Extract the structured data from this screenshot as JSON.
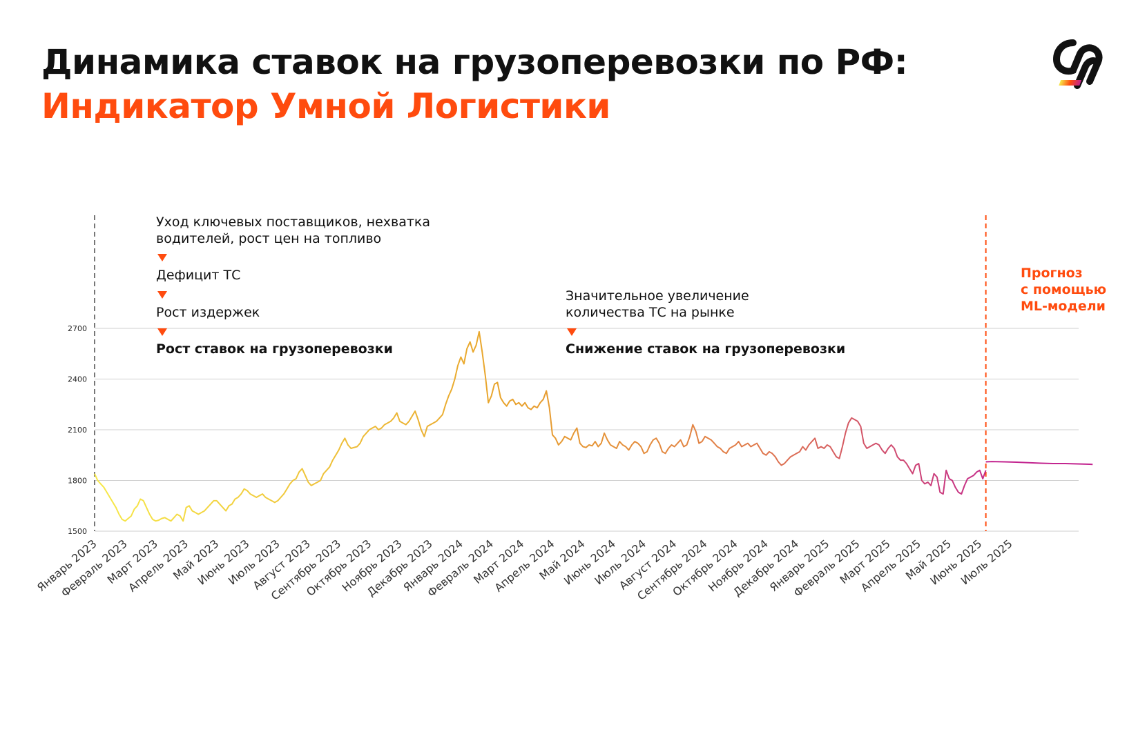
{
  "header": {
    "title_line1": "Динамика ставок на грузоперевозки по РФ:",
    "title_line2": "Индикатор Умной Логистики"
  },
  "annotations": {
    "left": {
      "line1": "Уход ключевых поставщиков, нехватка",
      "line2": "водителей, рост цен на топливо",
      "step2": "Дефицит ТС",
      "step3": "Рост издержек",
      "result": "Рост ставок на грузоперевозки"
    },
    "right": {
      "line1": "Значительное увеличение",
      "line2": "количества ТС на рынке",
      "result": "Снижение ставок на грузоперевозки"
    },
    "forecast": {
      "line1": "Прогноз",
      "line2": "с помощью",
      "line3": "ML-модели"
    }
  },
  "colors": {
    "accent": "#ff4b0e",
    "grid": "#cfcfcf",
    "line_start": "#f7e94a",
    "line_mid": "#e8a32c",
    "line_late": "#e07a4a",
    "line_end": "#c2248f"
  },
  "chart_data": {
    "type": "line",
    "title": "Динамика ставок на грузоперевозки по РФ: Индикатор Умной Логистики",
    "xlabel": "",
    "ylabel": "",
    "ylim": [
      1500,
      2700
    ],
    "yticks": [
      1500,
      1800,
      2100,
      2400,
      2700
    ],
    "grid": true,
    "x_tick_labels": [
      "Январь 2023",
      "Февраль 2023",
      "Март 2023",
      "Апрель 2023",
      "Май 2023",
      "Июнь 2023",
      "Июль 2023",
      "Август 2023",
      "Сентябрь 2023",
      "Октябрь 2023",
      "Ноябрь 2023",
      "Декабрь 2023",
      "Январь 2024",
      "Февраль 2024",
      "Март 2024",
      "Апрель 2024",
      "Май 2024",
      "Июнь 2024",
      "Июль 2024",
      "Август 2024",
      "Сентябрь 2024",
      "Октябрь 2024",
      "Ноябрь 2024",
      "Декабрь 2024",
      "Январь 2025",
      "Февраль 2025",
      "Март 2025",
      "Апрель 2025",
      "Май 2025",
      "Июнь 2025",
      "Июль 2025"
    ],
    "series": [
      {
        "kind": "actual",
        "x": [
          0,
          0.1,
          0.2,
          0.3,
          0.4,
          0.5,
          0.6,
          0.7,
          0.8,
          0.9,
          1.0,
          1.1,
          1.2,
          1.3,
          1.4,
          1.5,
          1.6,
          1.7,
          1.8,
          1.9,
          2.0,
          2.1,
          2.2,
          2.3,
          2.4,
          2.5,
          2.6,
          2.7,
          2.8,
          2.9,
          3.0,
          3.1,
          3.2,
          3.3,
          3.4,
          3.5,
          3.6,
          3.7,
          3.8,
          3.9,
          4.0,
          4.1,
          4.2,
          4.3,
          4.4,
          4.5,
          4.6,
          4.7,
          4.8,
          4.9,
          5.0,
          5.1,
          5.2,
          5.3,
          5.4,
          5.5,
          5.6,
          5.7,
          5.8,
          5.9,
          6.0,
          6.1,
          6.2,
          6.3,
          6.4,
          6.5,
          6.6,
          6.7,
          6.8,
          6.9,
          7.0,
          7.1,
          7.2,
          7.3,
          7.4,
          7.5,
          7.6,
          7.7,
          7.8,
          7.9,
          8.0,
          8.1,
          8.2,
          8.3,
          8.4,
          8.5,
          8.6,
          8.7,
          8.8,
          8.9,
          9.0,
          9.1,
          9.2,
          9.3,
          9.4,
          9.5,
          9.6,
          9.7,
          9.8,
          9.9,
          10.0,
          10.1,
          10.2,
          10.3,
          10.4,
          10.5,
          10.6,
          10.7,
          10.8,
          10.9,
          11.0,
          11.1,
          11.2,
          11.3,
          11.4,
          11.5,
          11.6,
          11.7,
          11.8,
          11.9,
          12.0,
          12.1,
          12.2,
          12.3,
          12.4,
          12.5,
          12.6,
          12.7,
          12.8,
          12.9,
          13.0,
          13.1,
          13.2,
          13.3,
          13.4,
          13.5,
          13.6,
          13.7,
          13.8,
          13.9,
          14.0,
          14.1,
          14.2,
          14.3,
          14.4,
          14.5,
          14.6,
          14.7,
          14.8,
          14.9,
          15.0,
          15.1,
          15.2,
          15.3,
          15.4,
          15.5,
          15.6,
          15.7,
          15.8,
          15.9,
          16.0,
          16.1,
          16.2,
          16.3,
          16.4,
          16.5,
          16.6,
          16.7,
          16.8,
          16.9,
          17.0,
          17.1,
          17.2,
          17.3,
          17.4,
          17.5,
          17.6,
          17.7,
          17.8,
          17.9,
          18.0,
          18.1,
          18.2,
          18.3,
          18.4,
          18.5,
          18.6,
          18.7,
          18.8,
          18.9,
          19.0,
          19.1,
          19.2,
          19.3,
          19.4,
          19.5,
          19.6,
          19.7,
          19.8,
          19.9,
          20.0,
          20.1,
          20.2,
          20.3,
          20.4,
          20.5,
          20.6,
          20.7,
          20.8,
          20.9,
          21.0,
          21.1,
          21.2,
          21.3,
          21.4,
          21.5,
          21.6,
          21.7,
          21.8,
          21.9,
          22.0,
          22.1,
          22.2,
          22.3,
          22.4,
          22.5,
          22.6,
          22.7,
          22.8,
          22.9,
          23.0,
          23.1,
          23.2,
          23.3,
          23.4,
          23.5,
          23.6,
          23.7,
          23.8,
          23.9,
          24.0,
          24.1,
          24.2,
          24.3,
          24.4,
          24.5,
          24.6,
          24.7,
          24.8,
          24.9,
          25.0,
          25.1,
          25.2,
          25.3,
          25.4,
          25.5,
          25.6,
          25.7,
          25.8,
          25.9,
          26.0,
          26.1,
          26.2,
          26.3,
          26.4,
          26.5,
          26.6,
          26.7,
          26.8,
          26.9,
          27.0,
          27.1,
          27.2,
          27.3,
          27.4,
          27.5,
          27.6,
          27.7,
          27.8,
          27.9,
          28.0,
          28.1,
          28.2,
          28.3,
          28.4,
          28.5,
          28.6,
          28.7,
          28.8,
          28.9,
          29.0,
          29.1,
          29.2
        ],
        "y": [
          1840,
          1800,
          1780,
          1760,
          1730,
          1700,
          1670,
          1640,
          1600,
          1570,
          1560,
          1575,
          1590,
          1630,
          1650,
          1690,
          1680,
          1640,
          1600,
          1570,
          1560,
          1565,
          1575,
          1580,
          1570,
          1560,
          1580,
          1600,
          1590,
          1560,
          1640,
          1650,
          1620,
          1610,
          1600,
          1610,
          1620,
          1640,
          1660,
          1680,
          1680,
          1660,
          1640,
          1620,
          1650,
          1660,
          1690,
          1700,
          1720,
          1750,
          1740,
          1720,
          1710,
          1700,
          1710,
          1720,
          1700,
          1690,
          1680,
          1670,
          1680,
          1700,
          1720,
          1750,
          1780,
          1800,
          1810,
          1850,
          1870,
          1830,
          1790,
          1770,
          1780,
          1790,
          1800,
          1840,
          1860,
          1880,
          1920,
          1950,
          1980,
          2020,
          2050,
          2010,
          1990,
          1995,
          2000,
          2020,
          2060,
          2080,
          2100,
          2110,
          2120,
          2100,
          2110,
          2130,
          2140,
          2150,
          2170,
          2200,
          2150,
          2140,
          2130,
          2150,
          2180,
          2210,
          2160,
          2100,
          2060,
          2120,
          2130,
          2140,
          2150,
          2170,
          2190,
          2250,
          2300,
          2340,
          2400,
          2480,
          2530,
          2490,
          2580,
          2620,
          2560,
          2600,
          2680,
          2560,
          2420,
          2260,
          2300,
          2370,
          2380,
          2290,
          2260,
          2240,
          2270,
          2280,
          2250,
          2260,
          2240,
          2260,
          2230,
          2220,
          2240,
          2230,
          2260,
          2280,
          2330,
          2230,
          2070,
          2050,
          2010,
          2030,
          2060,
          2050,
          2040,
          2080,
          2110,
          2020,
          2000,
          1995,
          2010,
          2005,
          2030,
          2000,
          2020,
          2080,
          2040,
          2010,
          2000,
          1990,
          2030,
          2010,
          2000,
          1980,
          2010,
          2030,
          2020,
          2000,
          1960,
          1970,
          2010,
          2040,
          2050,
          2020,
          1970,
          1960,
          1990,
          2010,
          2000,
          2020,
          2040,
          2000,
          2010,
          2060,
          2130,
          2090,
          2020,
          2030,
          2060,
          2050,
          2040,
          2020,
          2000,
          1990,
          1970,
          1960,
          1990,
          2000,
          2010,
          2030,
          2000,
          2010,
          2020,
          2000,
          2010,
          2020,
          1990,
          1960,
          1950,
          1970,
          1960,
          1940,
          1910,
          1890,
          1900,
          1920,
          1940,
          1950,
          1960,
          1970,
          2000,
          1980,
          2010,
          2030,
          2050,
          1990,
          2000,
          1990,
          2010,
          2000,
          1970,
          1940,
          1930,
          2000,
          2080,
          2140,
          2170,
          2160,
          2150,
          2120,
          2020,
          1990,
          2000,
          2010,
          2020,
          2010,
          1980,
          1960,
          1990,
          2010,
          1990,
          1940,
          1920,
          1920,
          1900,
          1870,
          1840,
          1890,
          1900,
          1800,
          1780,
          1790,
          1770,
          1840,
          1820,
          1730,
          1720,
          1860,
          1810,
          1800,
          1760,
          1730,
          1720,
          1770,
          1810,
          1820,
          1830,
          1850,
          1860,
          1810,
          1860
        ]
      },
      {
        "kind": "forecast",
        "x": [
          29.2,
          29.4,
          29.8,
          30.2,
          30.6,
          31.0,
          31.4,
          31.8,
          32.2,
          32.6,
          32.7
        ],
        "y": [
          1910,
          1912,
          1910,
          1908,
          1905,
          1902,
          1900,
          1900,
          1898,
          1896,
          1895
        ]
      }
    ],
    "vertical_markers": [
      {
        "x": 0,
        "style": "dashed",
        "color": "#777777"
      },
      {
        "x": 29.2,
        "style": "dashed",
        "color": "#ff4b0e"
      }
    ]
  }
}
